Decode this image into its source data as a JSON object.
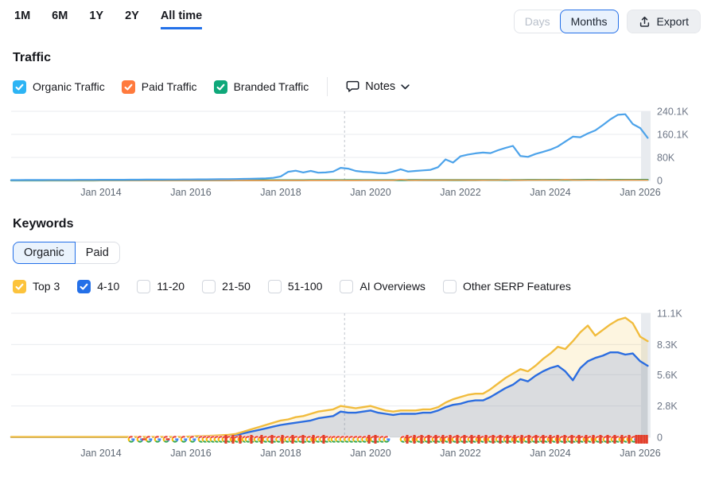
{
  "topbar": {
    "ranges": [
      "1M",
      "6M",
      "1Y",
      "2Y",
      "All time"
    ],
    "active_range": "All time",
    "granularity": {
      "days": "Days",
      "months": "Months",
      "selected": "Months"
    },
    "export_label": "Export"
  },
  "traffic": {
    "title": "Traffic",
    "legend": [
      {
        "label": "Organic Traffic",
        "checked": true,
        "color": "#2db4f4"
      },
      {
        "label": "Paid Traffic",
        "checked": true,
        "color": "#ff7a3d"
      },
      {
        "label": "Branded Traffic",
        "checked": true,
        "color": "#0fa87a"
      }
    ],
    "notes_label": "Notes"
  },
  "keywords": {
    "title": "Keywords",
    "toggle": {
      "options": [
        "Organic",
        "Paid"
      ],
      "selected": "Organic"
    },
    "filters": [
      {
        "label": "Top 3",
        "checked": true,
        "color": "#fcc33c"
      },
      {
        "label": "4-10",
        "checked": true,
        "color": "#2470e8"
      },
      {
        "label": "11-20",
        "checked": false
      },
      {
        "label": "21-50",
        "checked": false
      },
      {
        "label": "51-100",
        "checked": false
      },
      {
        "label": "AI Overviews",
        "checked": false
      },
      {
        "label": "Other SERP Features",
        "checked": false
      }
    ]
  },
  "chart_data": [
    {
      "type": "line",
      "title": "Traffic",
      "x_start": 2012.0,
      "x_step": 0.166667,
      "x_ticks": [
        {
          "year": 2014,
          "label": "Jan 2014"
        },
        {
          "year": 2016,
          "label": "Jan 2016"
        },
        {
          "year": 2018,
          "label": "Jan 2018"
        },
        {
          "year": 2020,
          "label": "Jan 2020"
        },
        {
          "year": 2022,
          "label": "Jan 2022"
        },
        {
          "year": 2024,
          "label": "Jan 2024"
        },
        {
          "year": 2026,
          "label": "Jan 2026"
        }
      ],
      "ylim": [
        0,
        240.1
      ],
      "value_unit": "K",
      "y_ticks": [
        {
          "v": 240.1,
          "label": "240.1K"
        },
        {
          "v": 160.1,
          "label": "160.1K"
        },
        {
          "v": 80,
          "label": "80K"
        },
        {
          "v": 0,
          "label": "0"
        }
      ],
      "dashed_marker_year": 2019.42,
      "series": [
        {
          "name": "Organic Traffic",
          "color": "#4da3ea",
          "width": 2.2,
          "values": [
            1.5,
            1.5,
            1.6,
            1.6,
            1.7,
            1.8,
            1.9,
            2,
            2,
            2.1,
            2.2,
            2.3,
            2.4,
            2.5,
            2.5,
            2.6,
            2.7,
            2.8,
            2.9,
            3,
            3.1,
            3.2,
            3.3,
            3.5,
            3.6,
            3.8,
            4,
            4.2,
            4.4,
            4.6,
            5,
            5.5,
            6,
            6.5,
            7.5,
            9,
            14,
            30,
            34,
            28,
            33,
            27,
            28,
            31,
            44,
            41,
            33,
            30,
            29,
            26,
            25,
            31,
            39,
            31,
            33,
            35,
            37,
            46,
            73,
            62,
            84,
            90,
            94,
            97,
            95,
            105,
            113,
            120,
            85,
            82,
            92,
            99,
            107,
            118,
            135,
            152,
            150,
            163,
            174,
            192,
            212,
            228,
            230,
            196,
            182,
            148
          ]
        },
        {
          "name": "Paid Traffic",
          "color": "#ff9a4d",
          "width": 1.6,
          "values": [
            0.1,
            0.1,
            0.1,
            0.1,
            0.1,
            0.1,
            0.1,
            0.1,
            0.1,
            0.1,
            0.1,
            0.1,
            0.2,
            0.2,
            0.2,
            0.2,
            0.2,
            0.2,
            0.2,
            0.2,
            0.2,
            0.2,
            0.2,
            0.2,
            0.3,
            0.3,
            0.3,
            0.3,
            0.3,
            0.3,
            0.3,
            0.3,
            0.4,
            0.4,
            0.4,
            0.4,
            0.5,
            0.5,
            0.5,
            0.6,
            0.5,
            0.5,
            0.6,
            0.6,
            0.7,
            0.6,
            0.6,
            0.7,
            0.8,
            0.7,
            0.7,
            0.8,
            2.9,
            1.2,
            0.9,
            1,
            1,
            1.1,
            1.2,
            1.3,
            1.4,
            1.2,
            1.1,
            1.2,
            1.3,
            1.5,
            2.2,
            1.4,
            1.2,
            1.3,
            1.4,
            1.6,
            1.5,
            1.4,
            2.6,
            1.6,
            1.4,
            1.5,
            1.6,
            2.3,
            1.7,
            1.5,
            1.6,
            1.7,
            1.5,
            1.4
          ]
        },
        {
          "name": "Branded Traffic",
          "color": "#0b9f70",
          "width": 2.4,
          "values": [
            0.4,
            0.4,
            0.4,
            0.4,
            0.4,
            0.4,
            0.4,
            0.4,
            0.4,
            0.4,
            0.4,
            0.4,
            0.5,
            0.5,
            0.5,
            0.5,
            0.5,
            0.5,
            0.5,
            0.5,
            0.5,
            0.5,
            0.5,
            0.5,
            0.6,
            0.6,
            0.6,
            0.6,
            0.6,
            0.6,
            0.7,
            0.7,
            0.7,
            0.7,
            0.8,
            0.8,
            0.9,
            0.9,
            0.9,
            0.9,
            1,
            1,
            1,
            1,
            1.1,
            1.1,
            1.1,
            1.1,
            1.2,
            1.2,
            1.2,
            1.2,
            1.3,
            1.3,
            1.3,
            1.3,
            1.4,
            1.4,
            1.4,
            1.4,
            1.5,
            1.5,
            1.5,
            1.6,
            1.6,
            1.6,
            1.7,
            1.7,
            1.7,
            1.8,
            1.8,
            1.8,
            1.9,
            1.9,
            2,
            2,
            2,
            2.1,
            2.1,
            2.2,
            2.2,
            2.2,
            2.3,
            2.3,
            2.2,
            2.2
          ]
        }
      ]
    },
    {
      "type": "area-line",
      "title": "Keywords",
      "x_start": 2012.0,
      "x_step": 0.166667,
      "x_ticks": [
        {
          "year": 2014,
          "label": "Jan 2014"
        },
        {
          "year": 2016,
          "label": "Jan 2016"
        },
        {
          "year": 2018,
          "label": "Jan 2018"
        },
        {
          "year": 2020,
          "label": "Jan 2020"
        },
        {
          "year": 2022,
          "label": "Jan 2022"
        },
        {
          "year": 2024,
          "label": "Jan 2024"
        },
        {
          "year": 2026,
          "label": "Jan 2026"
        }
      ],
      "ylim": [
        0,
        11.1
      ],
      "value_unit": "K",
      "y_ticks": [
        {
          "v": 11.1,
          "label": "11.1K"
        },
        {
          "v": 8.3,
          "label": "8.3K"
        },
        {
          "v": 5.6,
          "label": "5.6K"
        },
        {
          "v": 2.8,
          "label": "2.8K"
        },
        {
          "v": 0,
          "label": "0"
        }
      ],
      "dashed_marker_year": 2019.42,
      "series": [
        {
          "name": "Top 3",
          "color": "#f1bc3d",
          "fill": "rgba(243,190,62,0.16)",
          "width": 2.4,
          "values": [
            0.03,
            0.03,
            0.03,
            0.03,
            0.03,
            0.03,
            0.03,
            0.03,
            0.03,
            0.03,
            0.03,
            0.03,
            0.03,
            0.03,
            0.03,
            0.03,
            0.03,
            0.03,
            0.03,
            0.03,
            0.03,
            0.03,
            0.03,
            0.03,
            0.08,
            0.1,
            0.12,
            0.15,
            0.18,
            0.22,
            0.3,
            0.5,
            0.7,
            0.9,
            1.1,
            1.3,
            1.5,
            1.6,
            1.8,
            1.9,
            2.1,
            2.3,
            2.4,
            2.5,
            2.8,
            2.7,
            2.6,
            2.7,
            2.8,
            2.6,
            2.4,
            2.3,
            2.4,
            2.4,
            2.4,
            2.5,
            2.5,
            2.7,
            3.1,
            3.4,
            3.6,
            3.8,
            3.9,
            3.9,
            4.3,
            4.8,
            5.3,
            5.7,
            6.1,
            5.9,
            6.4,
            7,
            7.5,
            8.1,
            7.9,
            8.6,
            9.4,
            10,
            9.1,
            9.6,
            10.1,
            10.5,
            10.7,
            10.2,
            9,
            8.6
          ]
        },
        {
          "name": "4-10",
          "color": "#2b6de0",
          "fill": "rgba(59,110,224,0.18)",
          "width": 2.4,
          "values": [
            0.02,
            0.02,
            0.02,
            0.02,
            0.02,
            0.02,
            0.02,
            0.02,
            0.02,
            0.02,
            0.02,
            0.02,
            0.02,
            0.02,
            0.02,
            0.02,
            0.02,
            0.02,
            0.02,
            0.02,
            0.02,
            0.02,
            0.02,
            0.02,
            0.05,
            0.06,
            0.08,
            0.1,
            0.12,
            0.15,
            0.2,
            0.35,
            0.5,
            0.65,
            0.8,
            0.95,
            1.1,
            1.2,
            1.3,
            1.4,
            1.5,
            1.7,
            1.8,
            1.9,
            2.3,
            2.2,
            2.2,
            2.3,
            2.4,
            2.2,
            2.1,
            2,
            2.1,
            2.1,
            2.1,
            2.2,
            2.2,
            2.4,
            2.7,
            2.9,
            3,
            3.2,
            3.3,
            3.3,
            3.6,
            4,
            4.4,
            4.7,
            5.2,
            5,
            5.5,
            5.9,
            6.2,
            6.4,
            5.9,
            5.1,
            6.2,
            6.8,
            7.1,
            7.3,
            7.6,
            7.6,
            7.4,
            7.5,
            6.8,
            6.4
          ]
        }
      ],
      "annotations": {
        "description": "Google update note markers along baseline",
        "segments": [
          {
            "type": "g",
            "from": 165,
            "to": 251,
            "step": 11
          },
          {
            "type": "dash",
            "from": 181,
            "to": 213,
            "step": 30
          },
          {
            "type": "g",
            "from": 253,
            "to": 311,
            "step": 5
          },
          {
            "type": "bar",
            "from": 284,
            "to": 302,
            "step": 9
          },
          {
            "type": "g",
            "from": 312,
            "to": 419,
            "step": 5.5
          },
          {
            "type": "bar",
            "from": 316,
            "to": 419,
            "step": 13
          },
          {
            "type": "g",
            "from": 420,
            "to": 486,
            "step": 5.5
          },
          {
            "type": "bar",
            "from": 464,
            "to": 472,
            "step": 8
          },
          {
            "type": "g",
            "from": 507,
            "to": 799,
            "step": 5
          },
          {
            "type": "bar",
            "from": 512,
            "to": 799,
            "step": 9
          },
          {
            "type": "bar",
            "from": 800,
            "to": 814,
            "step": 3.3
          }
        ]
      }
    }
  ]
}
